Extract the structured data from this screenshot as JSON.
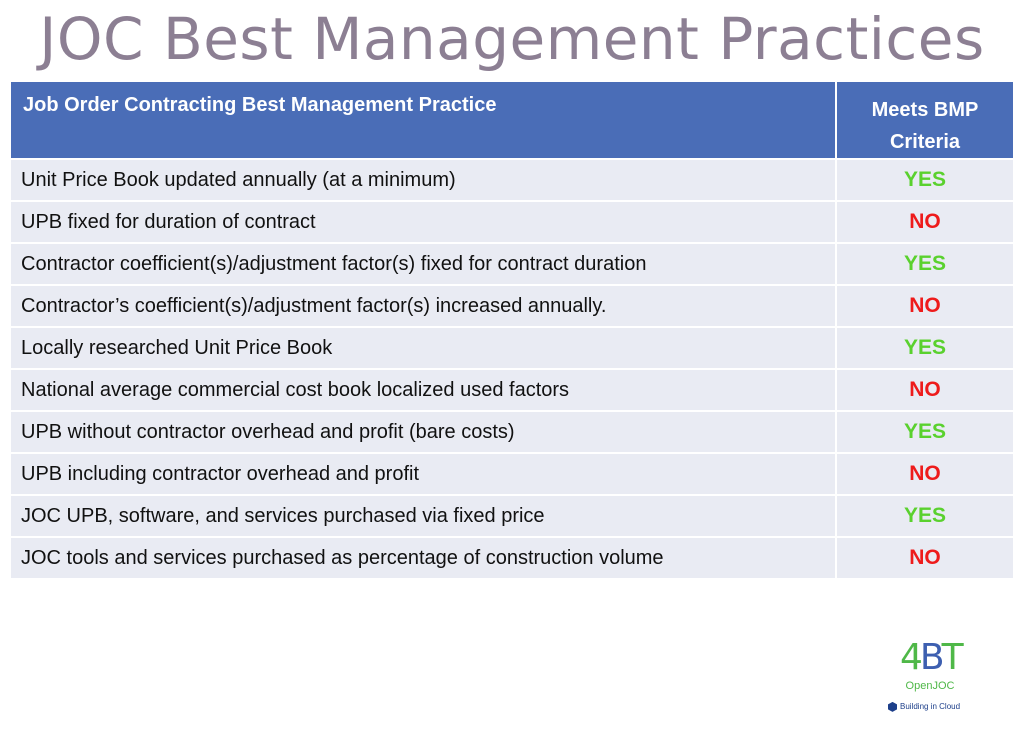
{
  "title": "JOC Best Management Practices",
  "table": {
    "headers": {
      "practice": "Job Order Contracting Best Management Practice",
      "criteria_line1": "Meets BMP",
      "criteria_line2": "Criteria"
    },
    "rows": [
      {
        "practice": "Unit Price Book updated annually (at a minimum)",
        "meets": "YES"
      },
      {
        "practice": "UPB fixed for duration of contract",
        "meets": "NO"
      },
      {
        "practice": "Contractor coefficient(s)/adjustment factor(s) fixed for contract duration",
        "meets": "YES"
      },
      {
        "practice": "Contractor’s coefficient(s)/adjustment factor(s) increased annually.",
        "meets": "NO"
      },
      {
        "practice": "Locally researched Unit Price Book",
        "meets": "YES"
      },
      {
        "practice": "National average commercial cost book localized used factors",
        "meets": "NO"
      },
      {
        "practice": "UPB without contractor overhead and profit (bare costs)",
        "meets": "YES"
      },
      {
        "practice": "UPB including contractor overhead and profit",
        "meets": "NO"
      },
      {
        "practice": "JOC UPB, software, and services purchased via fixed price",
        "meets": "YES"
      },
      {
        "practice": "JOC tools and services purchased as percentage of construction volume",
        "meets": "NO"
      }
    ]
  },
  "logo": {
    "mark_4": "4",
    "mark_b": "B",
    "mark_t": "T",
    "name": "OpenJOC",
    "tagline": "Building in Cloud"
  },
  "colors": {
    "header_bg": "#4a6db7",
    "row_bg": "#e9ebf3",
    "yes": "#5ad12e",
    "no": "#ee1b1b",
    "title": "#8c7f93"
  }
}
